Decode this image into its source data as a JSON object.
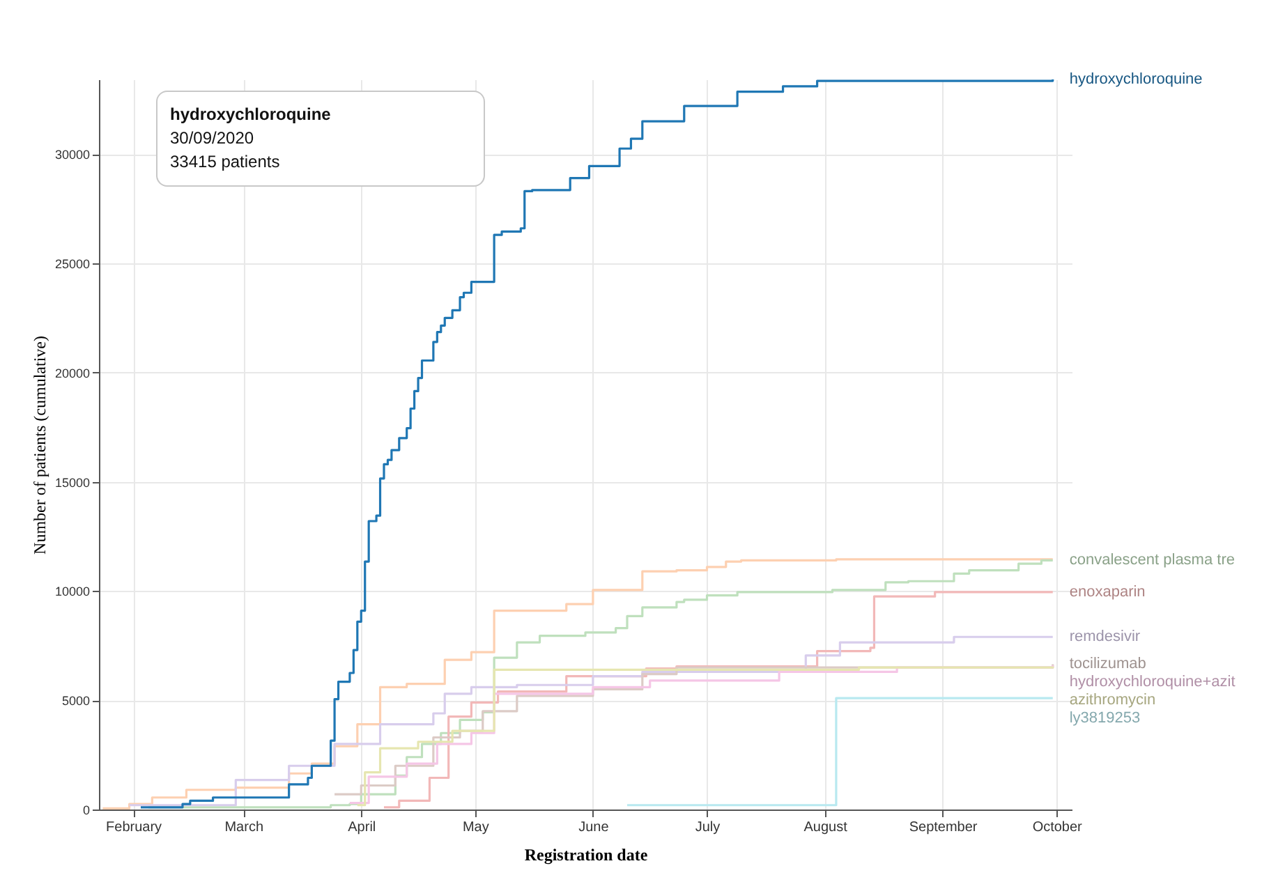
{
  "chart_data": {
    "type": "step",
    "xlabel": "Registration date",
    "ylabel": "Number of patients (cumulative)",
    "xlim": [
      "2020-01-23",
      "2020-10-05"
    ],
    "xticks": [
      {
        "value": "2020-02-01",
        "label": "February"
      },
      {
        "value": "2020-03-01",
        "label": "March"
      },
      {
        "value": "2020-04-01",
        "label": "April"
      },
      {
        "value": "2020-05-01",
        "label": "May"
      },
      {
        "value": "2020-06-01",
        "label": "June"
      },
      {
        "value": "2020-07-01",
        "label": "July"
      },
      {
        "value": "2020-08-01",
        "label": "August"
      },
      {
        "value": "2020-09-01",
        "label": "September"
      },
      {
        "value": "2020-10-01",
        "label": "October"
      }
    ],
    "ylim": [
      0,
      33415
    ],
    "yticks": [
      0,
      5000,
      10000,
      15000,
      20000,
      25000,
      30000
    ],
    "grid": true,
    "line_style": "solid",
    "annotations": [
      "hydroxychloroquine",
      "30/09/2020",
      "33415 patients"
    ],
    "series": [
      {
        "color": "#fdd0b1",
        "x": [
          "2020-01-24",
          "2020-01-31",
          "2020-02-06",
          "2020-02-15",
          "2020-02-28",
          "2020-03-13",
          "2020-03-19",
          "2020-03-25",
          "2020-03-31",
          "2020-04-06",
          "2020-04-13",
          "2020-04-23",
          "2020-04-30",
          "2020-05-06",
          "2020-05-25",
          "2020-06-01",
          "2020-06-14",
          "2020-06-23",
          "2020-07-01",
          "2020-07-06",
          "2020-07-10",
          "2020-08-04",
          "2020-09-30"
        ],
        "values": [
          50,
          250,
          550,
          900,
          1000,
          1650,
          2100,
          2900,
          3900,
          5600,
          5750,
          6850,
          7200,
          9100,
          9400,
          10050,
          10900,
          10950,
          11100,
          11350,
          11400,
          11450,
          11450
        ]
      },
      {
        "name": "convalescent plasma tre",
        "color": "#bfe0bd",
        "x": [
          "2020-02-05",
          "2020-03-24",
          "2020-03-29",
          "2020-04-01",
          "2020-04-10",
          "2020-04-13",
          "2020-04-17",
          "2020-04-22",
          "2020-04-27",
          "2020-05-03",
          "2020-05-06",
          "2020-05-12",
          "2020-05-18",
          "2020-05-30",
          "2020-06-07",
          "2020-06-10",
          "2020-06-14",
          "2020-06-23",
          "2020-06-25",
          "2020-07-01",
          "2020-07-09",
          "2020-08-03",
          "2020-08-17",
          "2020-08-23",
          "2020-09-04",
          "2020-09-08",
          "2020-09-21",
          "2020-09-27",
          "2020-09-30"
        ],
        "values": [
          100,
          200,
          250,
          700,
          1550,
          2400,
          3000,
          3500,
          4100,
          4450,
          6950,
          7650,
          7950,
          8100,
          8300,
          8850,
          9250,
          9500,
          9600,
          9800,
          9950,
          10050,
          10400,
          10450,
          10800,
          10950,
          11250,
          11400,
          11400
        ]
      },
      {
        "name": "enoxaparin",
        "color": "#f2b8b8",
        "x": [
          "2020-04-07",
          "2020-04-11",
          "2020-04-19",
          "2020-04-24",
          "2020-04-30",
          "2020-05-07",
          "2020-05-25",
          "2020-06-15",
          "2020-06-23",
          "2020-07-30",
          "2020-08-13",
          "2020-08-14",
          "2020-08-30",
          "2020-09-30"
        ],
        "values": [
          100,
          400,
          1450,
          4250,
          4900,
          5400,
          6100,
          6450,
          6550,
          7250,
          7400,
          9750,
          9950,
          9950
        ]
      },
      {
        "name": "remdesivir",
        "color": "#d8cdec",
        "x": [
          "2020-01-31",
          "2020-02-28",
          "2020-03-13",
          "2020-03-25",
          "2020-04-06",
          "2020-04-20",
          "2020-04-23",
          "2020-04-30",
          "2020-05-12",
          "2020-06-01",
          "2020-06-14",
          "2020-07-27",
          "2020-08-05",
          "2020-09-04",
          "2020-09-30"
        ],
        "values": [
          200,
          1350,
          2000,
          3000,
          3900,
          4400,
          5300,
          5600,
          5700,
          6100,
          6300,
          7050,
          7650,
          7900,
          7900
        ]
      },
      {
        "name": "tocilizumab",
        "color": "#dccbc6",
        "x": [
          "2020-03-25",
          "2020-04-01",
          "2020-04-10",
          "2020-04-20",
          "2020-04-27",
          "2020-05-03",
          "2020-05-12",
          "2020-06-01",
          "2020-06-14",
          "2020-06-23",
          "2020-09-30"
        ],
        "values": [
          700,
          1100,
          2000,
          3300,
          3600,
          4500,
          5200,
          5500,
          6200,
          6500,
          6650
        ]
      },
      {
        "name": "hydroxychloroquine+azit",
        "color": "#f5c6e6",
        "x": [
          "2020-03-29",
          "2020-04-03",
          "2020-04-13",
          "2020-04-21",
          "2020-04-30",
          "2020-05-06",
          "2020-06-01",
          "2020-06-16",
          "2020-07-20",
          "2020-08-20",
          "2020-09-30"
        ],
        "values": [
          300,
          1500,
          2100,
          3000,
          3500,
          5300,
          5600,
          5900,
          6300,
          6500,
          6600
        ]
      },
      {
        "name": "azithromycin",
        "color": "#e6e6b0",
        "x": [
          "2020-03-31",
          "2020-04-02",
          "2020-04-06",
          "2020-04-16",
          "2020-04-25",
          "2020-05-06",
          "2020-08-10",
          "2020-09-30"
        ],
        "values": [
          200,
          1700,
          2800,
          3100,
          3600,
          6400,
          6500,
          6550
        ]
      },
      {
        "name": "ly3819253",
        "color": "#b8e9f0",
        "x": [
          "2020-06-10",
          "2020-08-04",
          "2020-09-30"
        ],
        "values": [
          200,
          5100,
          5100
        ]
      },
      {
        "name": "hydroxychloroquine",
        "color": "#1f77b4",
        "x": [
          "2020-02-03",
          "2020-02-14",
          "2020-02-16",
          "2020-02-22",
          "2020-03-13",
          "2020-03-18",
          "2020-03-19",
          "2020-03-24",
          "2020-03-25",
          "2020-03-26",
          "2020-03-29",
          "2020-03-30",
          "2020-03-31",
          "2020-04-01",
          "2020-04-02",
          "2020-04-03",
          "2020-04-05",
          "2020-04-06",
          "2020-04-07",
          "2020-04-08",
          "2020-04-09",
          "2020-04-11",
          "2020-04-13",
          "2020-04-14",
          "2020-04-15",
          "2020-04-16",
          "2020-04-17",
          "2020-04-20",
          "2020-04-21",
          "2020-04-22",
          "2020-04-23",
          "2020-04-25",
          "2020-04-27",
          "2020-04-28",
          "2020-04-30",
          "2020-05-06",
          "2020-05-08",
          "2020-05-13",
          "2020-05-14",
          "2020-05-16",
          "2020-05-26",
          "2020-05-31",
          "2020-06-08",
          "2020-06-11",
          "2020-06-14",
          "2020-06-25",
          "2020-07-09",
          "2020-07-21",
          "2020-07-30",
          "2020-09-30"
        ],
        "values": [
          100,
          250,
          400,
          550,
          1150,
          1450,
          2000,
          3150,
          5050,
          5850,
          6250,
          7300,
          8600,
          9100,
          11350,
          13200,
          13450,
          15150,
          15800,
          16000,
          16450,
          17000,
          17450,
          18350,
          19150,
          19750,
          20550,
          21400,
          21850,
          22150,
          22500,
          22850,
          23450,
          23650,
          24150,
          26300,
          26450,
          26600,
          28300,
          28350,
          28900,
          29450,
          30250,
          30700,
          31500,
          32200,
          32850,
          33100,
          33350,
          33415
        ]
      }
    ]
  }
}
